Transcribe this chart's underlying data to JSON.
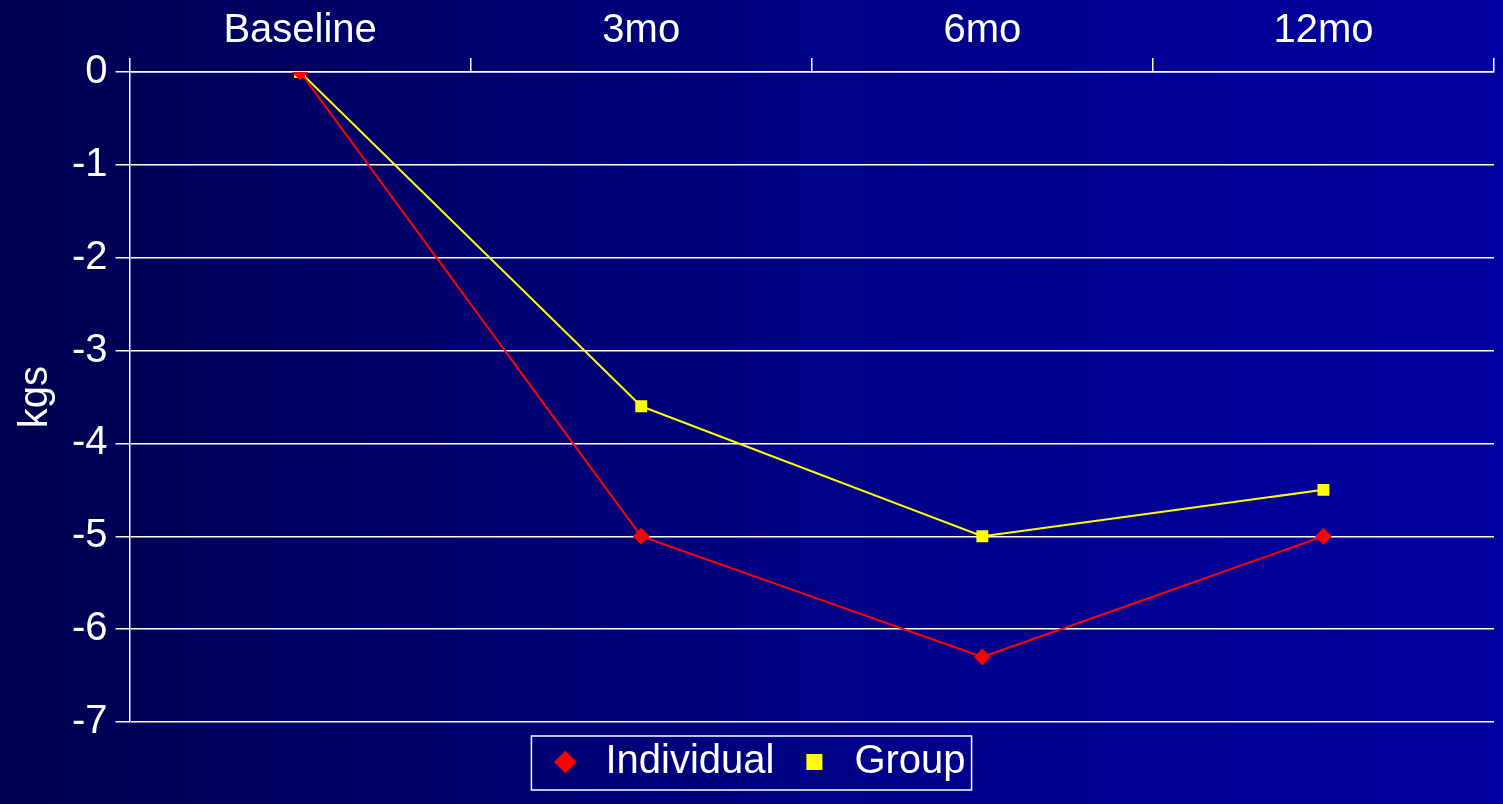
{
  "chart_data": {
    "type": "line",
    "ylabel": "kgs",
    "categories": [
      "Baseline",
      "3mo",
      "6mo",
      "12mo"
    ],
    "series": [
      {
        "name": "Individual",
        "color": "#ff0000",
        "marker": "diamond",
        "values": [
          0,
          -5,
          -6.3,
          -5
        ]
      },
      {
        "name": "Group",
        "color": "#ffff00",
        "marker": "square",
        "values": [
          0,
          -3.6,
          -5,
          -4.5
        ]
      }
    ],
    "ylim": [
      -7,
      0
    ],
    "yticks": [
      0,
      -1,
      -2,
      -3,
      -4,
      -5,
      -6,
      -7
    ],
    "grid": "y",
    "legend": "bottom",
    "line_style": "solid"
  }
}
